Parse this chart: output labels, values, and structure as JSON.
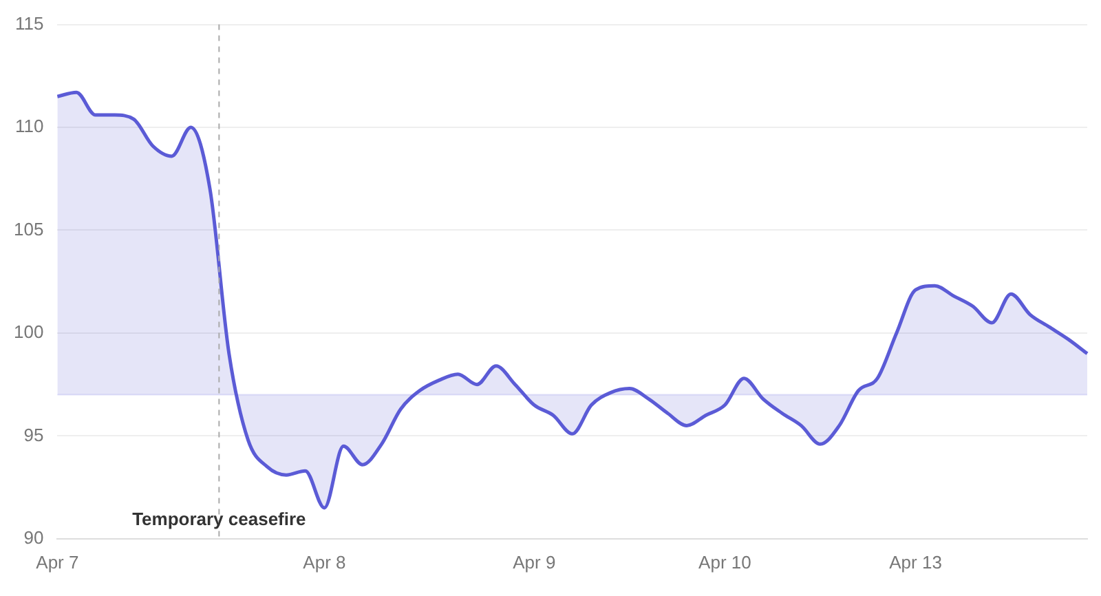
{
  "chart_data": {
    "type": "area",
    "categories": [
      "Apr 7",
      null,
      null,
      null,
      null,
      null,
      null,
      null,
      null,
      null,
      null,
      null,
      null,
      null,
      "Apr 8",
      null,
      null,
      null,
      null,
      null,
      null,
      null,
      null,
      null,
      null,
      "Apr 9",
      null,
      null,
      null,
      null,
      null,
      null,
      null,
      null,
      null,
      "Apr 10",
      null,
      null,
      null,
      null,
      null,
      null,
      null,
      null,
      null,
      "Apr 13",
      null,
      null,
      null,
      null,
      null,
      null,
      null,
      null,
      null
    ],
    "series": [
      {
        "color": "#5b5bd6",
        "values": [
          111.5,
          111.7,
          110.6,
          110.6,
          110.4,
          109.1,
          108.6,
          110,
          107,
          99,
          94.8,
          93.5,
          93.1,
          93.3,
          91.5,
          94.5,
          93.6,
          94.6,
          96.3,
          97.2,
          97.7,
          98,
          97.5,
          98.4,
          97.5,
          96.5,
          96,
          95.1,
          96.5,
          97.1,
          97.3,
          96.8,
          96.1,
          95.5,
          96,
          96.5,
          97.8,
          96.8,
          96.1,
          95.5,
          94.6,
          95.5,
          97.2,
          97.8,
          100,
          102.1,
          102.3,
          101.8,
          101.3,
          100.5,
          101.9,
          100.9,
          100.3,
          99.7,
          99
        ]
      }
    ],
    "ylim": [
      90,
      115
    ],
    "yticks": [
      90,
      95,
      100,
      105,
      110,
      115
    ],
    "grid": "y",
    "legend": false,
    "annotations": [
      "Temporary ceasefire"
    ],
    "ref_lines": [
      {
        "axis": "y",
        "value": 97,
        "label": null,
        "color": "#e4e4fa",
        "line_style": "solid"
      }
    ]
  }
}
